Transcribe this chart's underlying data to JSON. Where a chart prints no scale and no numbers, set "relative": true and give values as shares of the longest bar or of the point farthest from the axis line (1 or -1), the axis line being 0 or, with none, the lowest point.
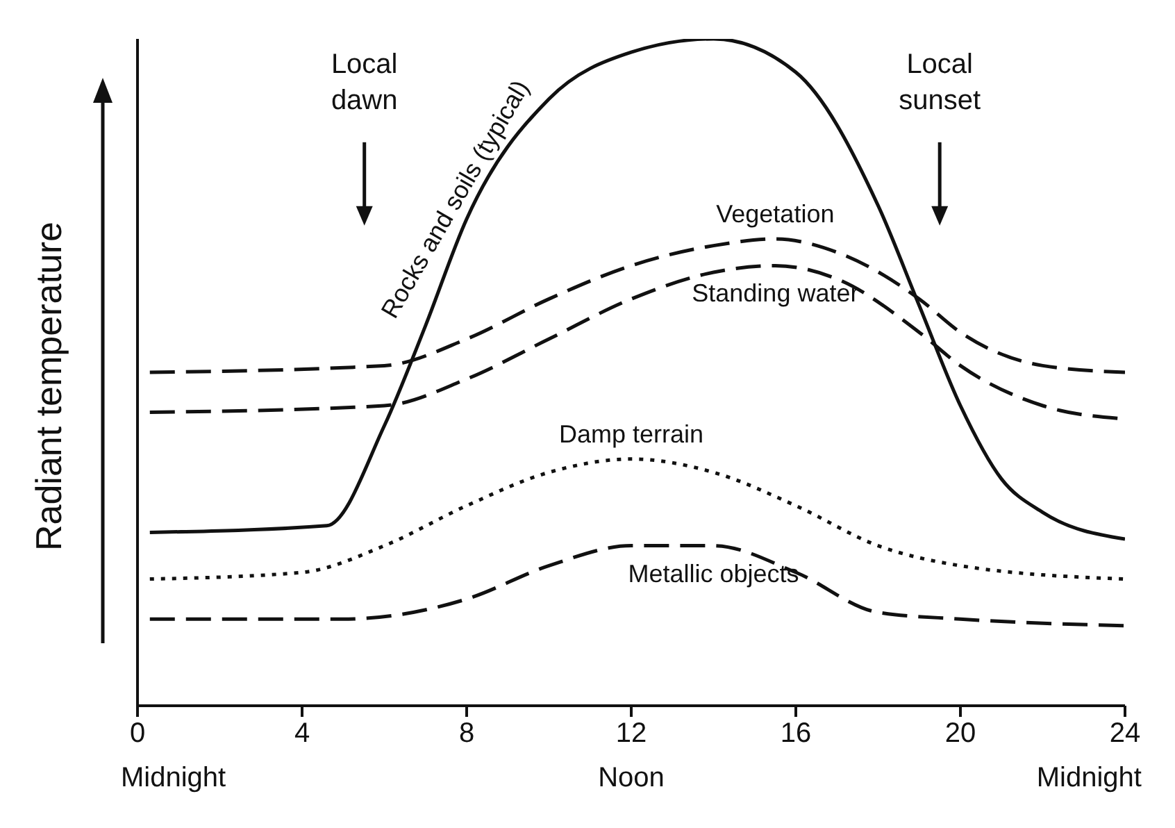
{
  "chart_data": {
    "type": "line",
    "relative": true,
    "ylabel": "Radiant temperature",
    "xlim": [
      0,
      24
    ],
    "xticks": [
      0,
      4,
      8,
      12,
      16,
      20,
      24
    ],
    "grid": false,
    "marker": "none",
    "series": [
      {
        "name": "Rocks and soils (typical)",
        "color": "#111111",
        "line_style": "solid",
        "x": [
          0.3,
          4.6,
          6,
          7,
          8,
          10,
          12,
          14,
          16,
          18,
          19,
          20,
          21,
          22,
          24
        ],
        "values": [
          0.26,
          0.27,
          0.42,
          0.57,
          0.73,
          0.91,
          0.98,
          1,
          0.95,
          0.75,
          0.6,
          0.45,
          0.34,
          0.29,
          0.25
        ]
      },
      {
        "name": "Vegetation",
        "color": "#111111",
        "line_style": "dashed",
        "x": [
          0.3,
          6,
          8,
          10,
          12,
          14,
          15.5,
          17,
          19,
          20,
          22,
          24
        ],
        "values": [
          0.5,
          0.51,
          0.55,
          0.61,
          0.66,
          0.69,
          0.7,
          0.68,
          0.61,
          0.56,
          0.51,
          0.5
        ]
      },
      {
        "name": "Standing water",
        "color": "#111111",
        "line_style": "dashed",
        "x": [
          0.3,
          6,
          8,
          10,
          12,
          14,
          15.5,
          17,
          19,
          20,
          22,
          24
        ],
        "values": [
          0.44,
          0.45,
          0.49,
          0.55,
          0.61,
          0.65,
          0.66,
          0.64,
          0.56,
          0.51,
          0.45,
          0.43
        ]
      },
      {
        "name": "Damp terrain",
        "color": "#111111",
        "line_style": "dotted",
        "x": [
          0.3,
          4,
          6,
          8,
          10,
          12,
          14,
          16,
          18,
          20,
          24
        ],
        "values": [
          0.19,
          0.2,
          0.24,
          0.3,
          0.35,
          0.37,
          0.35,
          0.3,
          0.24,
          0.21,
          0.19
        ]
      },
      {
        "name": "Metallic objects",
        "color": "#111111",
        "line_style": "dashed",
        "x": [
          0.3,
          5,
          8,
          10,
          12,
          14,
          16,
          18,
          20,
          24
        ],
        "values": [
          0.13,
          0.13,
          0.16,
          0.21,
          0.24,
          0.24,
          0.2,
          0.14,
          0.13,
          0.12
        ]
      }
    ],
    "annotations": [
      "Local dawn",
      "Local sunset",
      "Midnight",
      "Noon",
      "Midnight"
    ]
  }
}
